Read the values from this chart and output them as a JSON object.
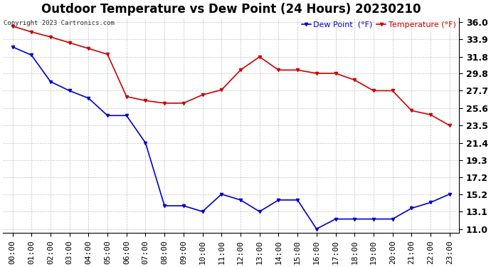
{
  "title": "Outdoor Temperature vs Dew Point (24 Hours) 20230210",
  "copyright": "Copyright 2023 Cartronics.com",
  "legend_dew": "Dew Point  (°F)",
  "legend_temp": "Temperature (°F)",
  "x_labels": [
    "00:00",
    "01:00",
    "02:00",
    "03:00",
    "04:00",
    "05:00",
    "06:00",
    "07:00",
    "08:00",
    "09:00",
    "10:00",
    "11:00",
    "12:00",
    "13:00",
    "14:00",
    "15:00",
    "16:00",
    "17:00",
    "18:00",
    "19:00",
    "20:00",
    "21:00",
    "22:00",
    "23:00"
  ],
  "temperature": [
    35.5,
    34.8,
    34.2,
    33.5,
    32.8,
    32.1,
    27.0,
    26.5,
    26.2,
    26.2,
    27.2,
    27.8,
    30.2,
    31.8,
    30.2,
    30.2,
    29.8,
    29.8,
    29.0,
    27.7,
    27.7,
    25.3,
    24.8,
    23.5
  ],
  "dew_point": [
    33.0,
    32.0,
    28.8,
    27.7,
    26.8,
    24.7,
    24.7,
    21.4,
    13.8,
    13.8,
    13.1,
    15.2,
    14.5,
    13.1,
    14.5,
    14.5,
    11.0,
    12.2,
    12.2,
    12.2,
    12.2,
    13.5,
    14.2,
    15.2
  ],
  "y_ticks": [
    11.0,
    13.1,
    15.2,
    17.2,
    19.3,
    21.4,
    23.5,
    25.6,
    27.7,
    29.8,
    31.8,
    33.9,
    36.0
  ],
  "ylim": [
    10.5,
    36.5
  ],
  "temp_color": "#cc0000",
  "dew_color": "#0000cc",
  "bg_color": "#ffffff",
  "grid_color": "#aaaaaa",
  "title_fontsize": 12,
  "label_fontsize": 8
}
